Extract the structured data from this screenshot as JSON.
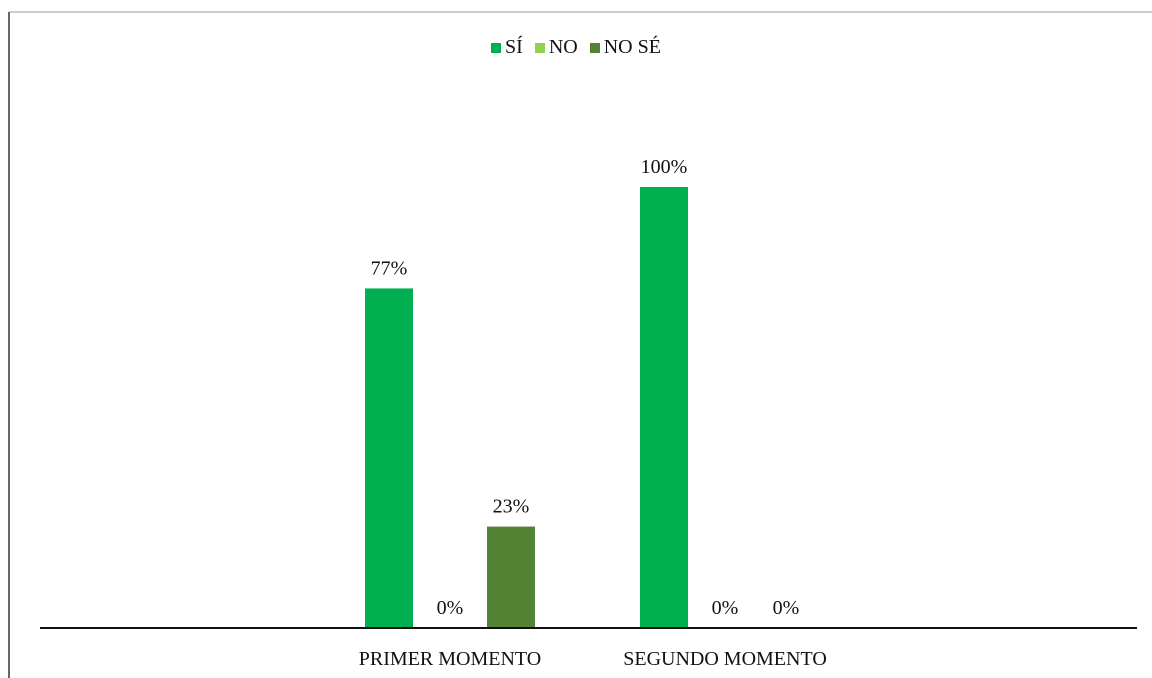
{
  "chart_data": {
    "type": "bar",
    "categories": [
      "PRIMER MOMENTO",
      "SEGUNDO MOMENTO"
    ],
    "series": [
      {
        "name": "SÍ",
        "values": [
          77,
          100
        ],
        "labels": [
          "77%",
          "100%"
        ],
        "color": "#00b050"
      },
      {
        "name": "NO",
        "values": [
          0,
          0
        ],
        "labels": [
          "0%",
          "0%"
        ],
        "color": "#92d050"
      },
      {
        "name": "NO SÉ",
        "values": [
          23,
          0
        ],
        "labels": [
          "23%",
          "0%"
        ],
        "color": "#548235"
      }
    ],
    "ylim": [
      0,
      100
    ],
    "legend_position": "top-center",
    "grid": false
  }
}
